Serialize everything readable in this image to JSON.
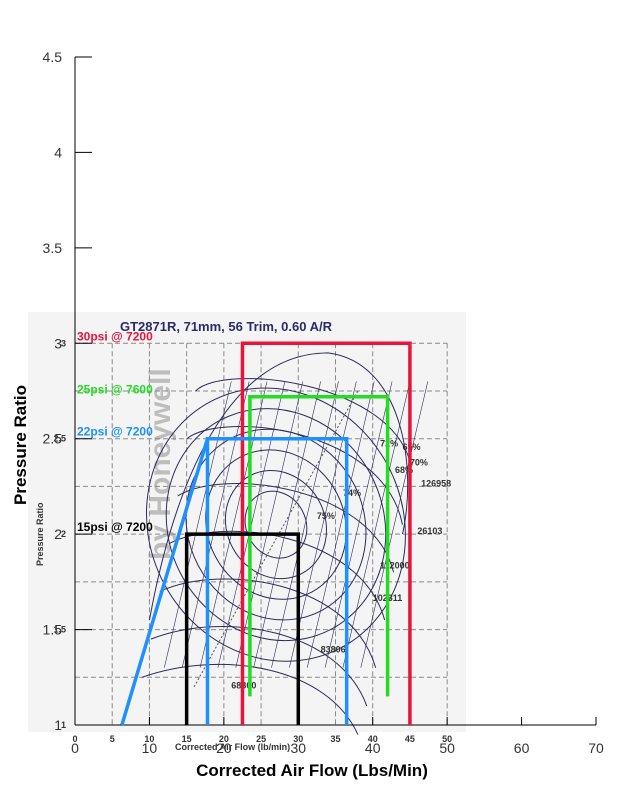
{
  "chart_data": {
    "type": "line",
    "xlabel": "Corrected Air Flow (Lbs/Min)",
    "ylabel": "Pressure Ratio",
    "xlim": [
      0,
      70
    ],
    "ylim": [
      1,
      4.5
    ],
    "xticks": [
      0,
      10,
      20,
      30,
      40,
      50,
      60,
      70
    ],
    "yticks": [
      1,
      1.5,
      2,
      2.5,
      3,
      3.5,
      4,
      4.5
    ],
    "ytick_labels": [
      "1",
      "1.5",
      "2",
      "2.5",
      "3",
      "3.5",
      "4",
      "4.5"
    ],
    "grid": false,
    "background_map": {
      "title": "GT2871R, 71mm, 56 Trim, 0.60 A/R",
      "xlabel": "Corrected Air Flow (lb/min)",
      "ylabel": "Pressure Ratio",
      "watermark": "by Honeywell",
      "xticks": [
        0,
        5,
        10,
        15,
        20,
        25,
        30,
        35,
        40,
        45,
        50
      ],
      "yticks": [
        1,
        1.5,
        2,
        2.5,
        3
      ],
      "speed_lines": [
        "126958",
        "112000",
        "102311",
        "83806",
        "26103",
        "68800"
      ],
      "efficiency_labels": [
        "72%",
        "74%",
        "75%",
        "68%",
        "70%",
        "65%"
      ]
    },
    "series": [
      {
        "name": "30psi @ 7200",
        "color": "#e8143c",
        "pressure_ratio": 3.0,
        "x_low": 22.5,
        "x_high": 45.0
      },
      {
        "name": "25psi @ 7600",
        "color": "#22dd22",
        "pressure_ratio": 2.72,
        "x_low": 23.5,
        "x_high": 42.0
      },
      {
        "name": "22psi @ 7200",
        "color": "#1e90ff",
        "pressure_ratio": 2.5,
        "x_low": 17.8,
        "x_high": 36.5
      },
      {
        "name": "15psi @ 7200",
        "color": "#000000",
        "pressure_ratio": 2.0,
        "x_low": 15.0,
        "x_high": 30.0
      }
    ],
    "surge_line": {
      "color": "#1e90ff",
      "points": [
        [
          6.3,
          1.0
        ],
        [
          17.8,
          2.5
        ]
      ]
    }
  }
}
